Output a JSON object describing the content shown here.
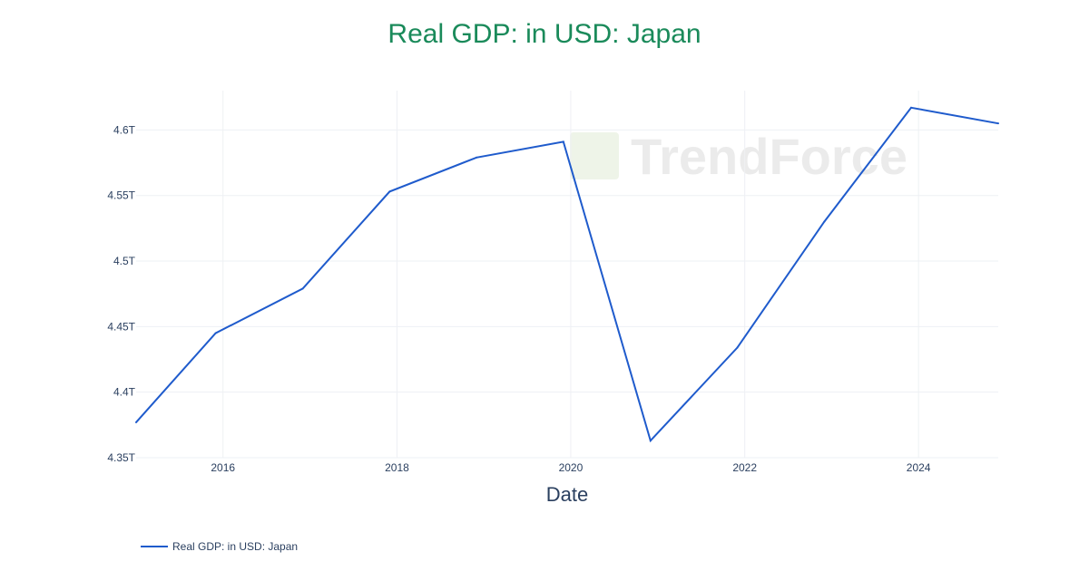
{
  "chart_data": {
    "type": "line",
    "title": "Real GDP: in USD: Japan",
    "xlabel": "Date",
    "ylabel": "",
    "x": [
      "2015-01-01",
      "2015-12-01",
      "2016-12-01",
      "2017-12-01",
      "2018-12-01",
      "2019-12-01",
      "2020-12-01",
      "2021-12-01",
      "2022-12-01",
      "2023-12-01",
      "2024-12-01"
    ],
    "series": [
      {
        "name": "Real GDP: in USD: Japan",
        "values": [
          4.377,
          4.445,
          4.479,
          4.553,
          4.579,
          4.591,
          4.363,
          4.434,
          4.53,
          4.617,
          4.605
        ]
      }
    ],
    "xlim": [
      "2015-01-01",
      "2024-12-01"
    ],
    "ylim": [
      4.35,
      4.63
    ],
    "x_ticks": [
      {
        "label": "2016",
        "value": "2016-01-01"
      },
      {
        "label": "2018",
        "value": "2018-01-01"
      },
      {
        "label": "2020",
        "value": "2020-01-01"
      },
      {
        "label": "2022",
        "value": "2022-01-01"
      },
      {
        "label": "2024",
        "value": "2024-01-01"
      }
    ],
    "y_ticks": [
      {
        "label": "4.35T",
        "value": 4.35
      },
      {
        "label": "4.4T",
        "value": 4.4
      },
      {
        "label": "4.45T",
        "value": 4.45
      },
      {
        "label": "4.5T",
        "value": 4.5
      },
      {
        "label": "4.55T",
        "value": 4.55
      },
      {
        "label": "4.6T",
        "value": 4.6
      }
    ],
    "grid": true,
    "legend": "bottom-left",
    "line_color": "#1f5bcc",
    "title_color": "#1a8a5a"
  },
  "watermark": "TrendForce"
}
